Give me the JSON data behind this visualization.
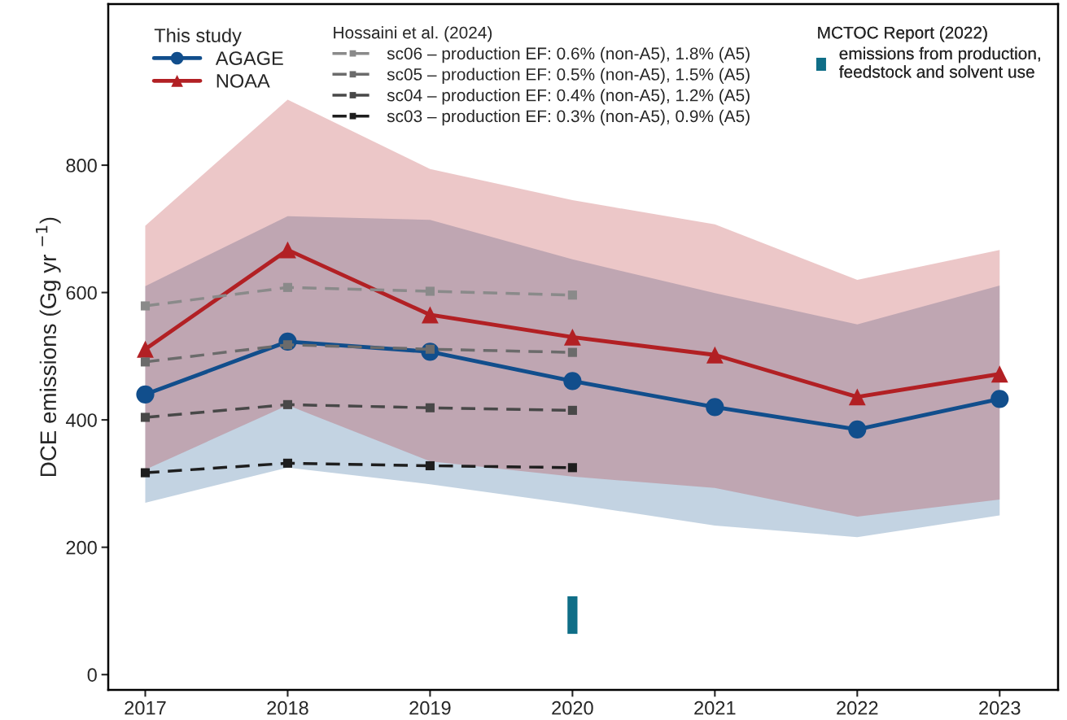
{
  "chart_data": {
    "type": "line",
    "ylabel": "DCE emissions (Gg yr $^{−1}$)",
    "xlim": [
      2016.74,
      2023.41
    ],
    "xticks": [
      2017,
      2018,
      2019,
      2020,
      2021,
      2022,
      2023
    ],
    "ylim": [
      -24,
      1053
    ],
    "yticks": [
      0,
      200,
      400,
      600,
      800
    ],
    "legend": "top",
    "legend_title": [
      "This study",
      "Hossaini et al. (2024)",
      "MCTOC Report (2022)"
    ],
    "grid": false,
    "series": [
      {
        "name": "AGAGE",
        "color": "#114e8c",
        "marker": "circle",
        "line_style": "solid",
        "x": [
          2017,
          2018,
          2019,
          2020,
          2021,
          2022,
          2023
        ],
        "values": [
          440,
          523,
          507,
          461,
          420,
          385,
          433
        ],
        "lower": [
          270,
          325,
          299,
          268,
          234,
          216,
          250
        ],
        "upper": [
          610,
          720,
          714,
          652,
          599,
          550,
          611
        ]
      },
      {
        "name": "NOAA",
        "color": "#b22024",
        "marker": "triangle",
        "line_style": "solid",
        "x": [
          2017,
          2018,
          2019,
          2020,
          2021,
          2022,
          2023
        ],
        "values": [
          511,
          667,
          565,
          530,
          502,
          436,
          472
        ],
        "lower": [
          322,
          423,
          335,
          311,
          293,
          248,
          275
        ],
        "upper": [
          705,
          903,
          794,
          745,
          707,
          620,
          667
        ]
      },
      {
        "name": "sc06 – production EF: 0.6% (non-A5), 1.8% (A5)",
        "color": "#8a8a8a",
        "marker": "square",
        "line_style": "dashed",
        "x": [
          2017,
          2018,
          2019,
          2020
        ],
        "values": [
          579,
          608,
          602,
          596
        ]
      },
      {
        "name": "sc05 – production EF: 0.5% (non-A5), 1.5% (A5)",
        "color": "#6b6b6b",
        "marker": "square",
        "line_style": "dashed",
        "x": [
          2017,
          2018,
          2019,
          2020
        ],
        "values": [
          491,
          518,
          511,
          506
        ]
      },
      {
        "name": "sc04 – production EF: 0.4% (non-A5), 1.2% (A5)",
        "color": "#484848",
        "marker": "square",
        "line_style": "dashed",
        "x": [
          2017,
          2018,
          2019,
          2020
        ],
        "values": [
          404,
          424,
          419,
          415
        ]
      },
      {
        "name": "sc03 – production EF: 0.3% (non-A5), 0.9% (A5)",
        "color": "#1e1e1e",
        "marker": "square",
        "line_style": "dashed",
        "x": [
          2017,
          2018,
          2019,
          2020
        ],
        "values": [
          317,
          332,
          328,
          325
        ]
      },
      {
        "name": "emissions from production,\nfeedstock and solvent use",
        "type": "bar",
        "color": "#0f6e87",
        "x": [
          2020
        ],
        "base": [
          64
        ],
        "values": [
          59
        ]
      }
    ]
  }
}
